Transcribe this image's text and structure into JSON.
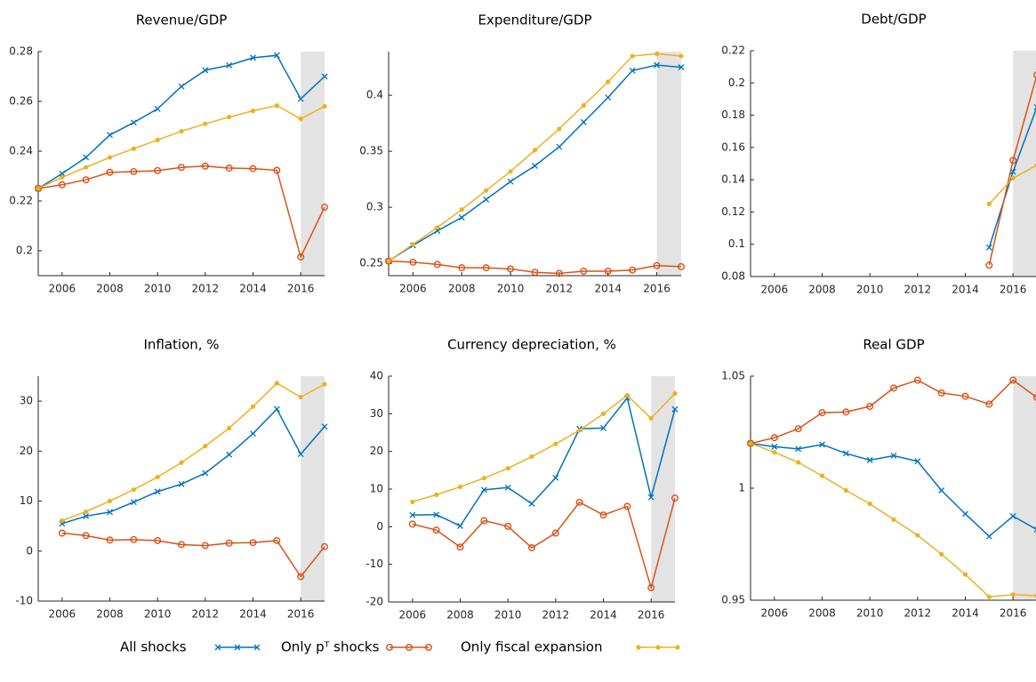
{
  "chart_data": [
    {
      "type": "line",
      "title": "Revenue/GDP",
      "x": [
        2005,
        2006,
        2007,
        2008,
        2009,
        2010,
        2011,
        2012,
        2013,
        2014,
        2015,
        2016,
        2017
      ],
      "xlim": [
        2005,
        2017
      ],
      "xticks": [
        2006,
        2008,
        2010,
        2012,
        2014,
        2016
      ],
      "ylim": [
        0.19,
        0.28
      ],
      "yticks": [
        0.2,
        0.22,
        0.24,
        0.26,
        0.28
      ],
      "shaded": [
        2016,
        2017
      ],
      "series": [
        {
          "color": "#0072BD",
          "marker": "x",
          "values": [
            0.225,
            0.231,
            0.2375,
            0.2465,
            0.2515,
            0.257,
            0.266,
            0.2725,
            0.2745,
            0.2775,
            0.2785,
            0.261,
            0.27
          ]
        },
        {
          "color": "#D95319",
          "marker": "o",
          "values": [
            0.225,
            0.2265,
            0.2285,
            0.2315,
            0.2318,
            0.2322,
            0.2335,
            0.234,
            0.2332,
            0.233,
            0.2323,
            0.1975,
            0.2175
          ]
        },
        {
          "color": "#EDB120",
          "marker": "dot",
          "values": [
            0.225,
            0.2295,
            0.2335,
            0.2375,
            0.241,
            0.2445,
            0.248,
            0.251,
            0.2537,
            0.2562,
            0.2583,
            0.253,
            0.258
          ]
        }
      ]
    },
    {
      "type": "line",
      "title": "Expenditure/GDP",
      "x": [
        2005,
        2006,
        2007,
        2008,
        2009,
        2010,
        2011,
        2012,
        2013,
        2014,
        2015,
        2016,
        2017
      ],
      "xlim": [
        2005,
        2017
      ],
      "xticks": [
        2006,
        2008,
        2010,
        2012,
        2014,
        2016
      ],
      "ylim": [
        0.239,
        0.439
      ],
      "yticks": [
        0.25,
        0.3,
        0.35,
        0.4
      ],
      "shaded": [
        2016,
        2017
      ],
      "series": [
        {
          "color": "#0072BD",
          "marker": "x",
          "values": [
            0.252,
            0.266,
            0.279,
            0.291,
            0.307,
            0.323,
            0.337,
            0.354,
            0.376,
            0.398,
            0.422,
            0.427,
            0.425
          ]
        },
        {
          "color": "#D95319",
          "marker": "o",
          "values": [
            0.252,
            0.251,
            0.249,
            0.246,
            0.246,
            0.245,
            0.242,
            0.241,
            0.243,
            0.243,
            0.244,
            0.248,
            0.247
          ]
        },
        {
          "color": "#EDB120",
          "marker": "dot",
          "values": [
            0.252,
            0.267,
            0.282,
            0.298,
            0.315,
            0.332,
            0.351,
            0.37,
            0.391,
            0.412,
            0.435,
            0.437,
            0.435
          ]
        }
      ]
    },
    {
      "type": "line",
      "title": "Debt/GDP",
      "x": [
        2005,
        2006,
        2007,
        2008,
        2009,
        2010,
        2011,
        2012,
        2013,
        2014,
        2015,
        2016,
        2017
      ],
      "xlim": [
        2005,
        2017
      ],
      "xticks": [
        2006,
        2008,
        2010,
        2012,
        2014,
        2016
      ],
      "ylim": [
        0.08,
        0.22
      ],
      "yticks": [
        0.08,
        0.1,
        0.12,
        0.14,
        0.16,
        0.18,
        0.2,
        0.22
      ],
      "shaded": [
        2016,
        2017
      ],
      "series": [
        {
          "color": "#0072BD",
          "marker": "x",
          "values": [
            null,
            null,
            null,
            null,
            null,
            null,
            null,
            null,
            null,
            null,
            0.098,
            0.145,
            0.185
          ]
        },
        {
          "color": "#D95319",
          "marker": "o",
          "values": [
            null,
            null,
            null,
            null,
            null,
            null,
            null,
            null,
            null,
            null,
            0.087,
            0.152,
            0.205
          ]
        },
        {
          "color": "#EDB120",
          "marker": "dot",
          "values": [
            null,
            null,
            null,
            null,
            null,
            null,
            null,
            null,
            null,
            null,
            0.125,
            0.141,
            0.149
          ]
        }
      ]
    },
    {
      "type": "line",
      "title": "Inflation, %",
      "x": [
        2005,
        2006,
        2007,
        2008,
        2009,
        2010,
        2011,
        2012,
        2013,
        2014,
        2015,
        2016,
        2017
      ],
      "xlim": [
        2005,
        2017
      ],
      "xticks": [
        2006,
        2008,
        2010,
        2012,
        2014,
        2016
      ],
      "ylim": [
        -10,
        35
      ],
      "yticks": [
        -10,
        0,
        10,
        20,
        30
      ],
      "shaded": [
        2016,
        2017
      ],
      "series": [
        {
          "color": "#0072BD",
          "marker": "x",
          "values": [
            null,
            5.5,
            7,
            7.8,
            9.8,
            11.9,
            13.4,
            15.6,
            19.3,
            23.5,
            28.4,
            19.4,
            24.9
          ]
        },
        {
          "color": "#D95319",
          "marker": "o",
          "values": [
            null,
            3.6,
            3.1,
            2.2,
            2.3,
            2.1,
            1.3,
            1.1,
            1.6,
            1.7,
            2.1,
            -5.1,
            0.9
          ]
        },
        {
          "color": "#EDB120",
          "marker": "dot",
          "values": [
            null,
            6.1,
            7.9,
            10,
            12.3,
            14.8,
            17.7,
            21,
            24.6,
            28.9,
            33.6,
            30.8,
            33.4
          ]
        }
      ]
    },
    {
      "type": "line",
      "title": "Currency depreciation, %",
      "x": [
        2005,
        2006,
        2007,
        2008,
        2009,
        2010,
        2011,
        2012,
        2013,
        2014,
        2015,
        2016,
        2017
      ],
      "xlim": [
        2005,
        2017
      ],
      "xticks": [
        2006,
        2008,
        2010,
        2012,
        2014,
        2016
      ],
      "ylim": [
        -20,
        40
      ],
      "yticks": [
        -20,
        -10,
        0,
        10,
        20,
        30,
        40
      ],
      "shaded": [
        2016,
        2017
      ],
      "series": [
        {
          "color": "#0072BD",
          "marker": "x",
          "values": [
            null,
            3.1,
            3.2,
            0.2,
            9.8,
            10.4,
            6.1,
            13,
            26,
            26.2,
            34.2,
            7.8,
            31.2
          ]
        },
        {
          "color": "#D95319",
          "marker": "o",
          "values": [
            null,
            0.7,
            -0.9,
            -5.4,
            1.6,
            0.1,
            -5.6,
            -1.7,
            6.5,
            3.1,
            5.4,
            -16.2,
            7.6
          ]
        },
        {
          "color": "#EDB120",
          "marker": "dot",
          "values": [
            null,
            6.6,
            8.5,
            10.6,
            12.9,
            15.5,
            18.6,
            22,
            25.6,
            30,
            34.9,
            28.8,
            35.4
          ]
        }
      ]
    },
    {
      "type": "line",
      "title": "Real GDP",
      "x": [
        2005,
        2006,
        2007,
        2008,
        2009,
        2010,
        2011,
        2012,
        2013,
        2014,
        2015,
        2016,
        2017
      ],
      "xlim": [
        2005,
        2017
      ],
      "xticks": [
        2006,
        2008,
        2010,
        2012,
        2014,
        2016
      ],
      "ylim": [
        0.95,
        1.05
      ],
      "yticks": [
        0.95,
        1,
        1.05
      ],
      "shaded": [
        2016,
        2017
      ],
      "series": [
        {
          "color": "#0072BD",
          "marker": "x",
          "values": [
            1.02,
            1.0185,
            1.0175,
            1.0195,
            1.0155,
            1.0125,
            1.0145,
            1.012,
            0.999,
            0.9885,
            0.9785,
            0.9875,
            0.9815
          ]
        },
        {
          "color": "#D95319",
          "marker": "o",
          "values": [
            1.02,
            1.0225,
            1.0265,
            1.0337,
            1.034,
            1.0365,
            1.0447,
            1.0482,
            1.0425,
            1.041,
            1.0375,
            1.0482,
            1.0405
          ]
        },
        {
          "color": "#EDB120",
          "marker": "dot",
          "values": [
            1.02,
            1.016,
            1.0115,
            1.0055,
            0.999,
            0.993,
            0.986,
            0.979,
            0.9705,
            0.9615,
            0.9515,
            0.9525,
            0.952
          ]
        }
      ]
    }
  ],
  "legend": {
    "entries": [
      {
        "name": "All shocks",
        "color": "#0072BD",
        "marker": "x"
      },
      {
        "name": "Only pᵀ shocks",
        "color": "#D95319",
        "marker": "o"
      },
      {
        "name": "Only fiscal expansion",
        "color": "#EDB120",
        "marker": "dot"
      }
    ]
  }
}
